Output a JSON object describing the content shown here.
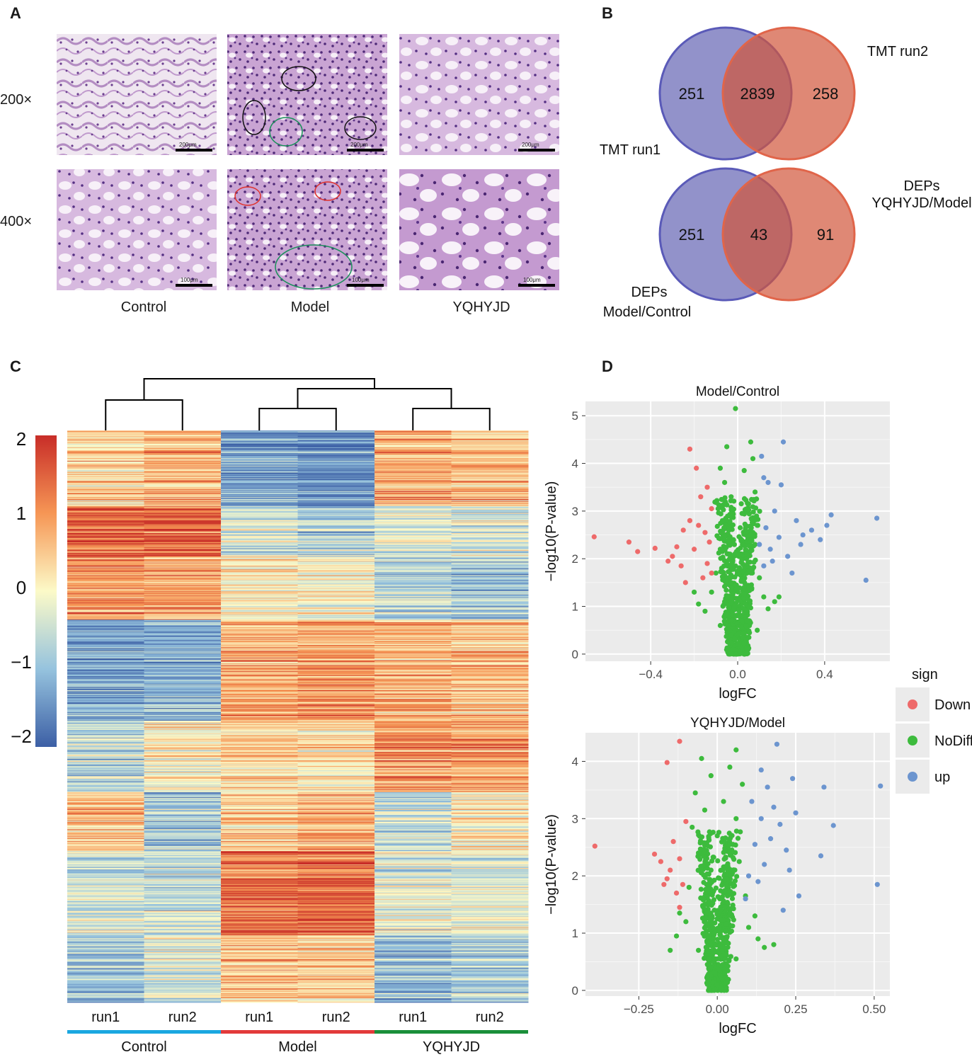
{
  "panels": {
    "A": "A",
    "B": "B",
    "C": "C",
    "D": "D"
  },
  "histology": {
    "row_labels": [
      "200×",
      "400×"
    ],
    "col_labels": [
      "Control",
      "Model",
      "YQHYJD"
    ],
    "scale_labels": [
      "200μm",
      "100μm"
    ]
  },
  "venn": [
    {
      "left_label": "TMT run1",
      "right_label": "TMT run2",
      "left_only": "251",
      "overlap": "2839",
      "right_only": "258"
    },
    {
      "left_label_1": "DEPs",
      "left_label_2": "Model/Control",
      "right_label_1": "DEPs",
      "right_label_2": "YQHYJD/Model",
      "left_only": "251",
      "overlap": "43",
      "right_only": "91"
    }
  ],
  "colors": {
    "venn_left": "#4a4aa6",
    "venn_right": "#d2553a",
    "down": "#ee6a6a",
    "nodiff": "#3dbb3d",
    "up": "#6c95cf",
    "control_bar": "#1aa7e0",
    "model_bar": "#e23a3a",
    "yqhyjd_bar": "#1a8f3a",
    "plot_bg": "#ebebeb"
  },
  "chart_data": [
    {
      "type": "heatmap",
      "title": "",
      "columns": [
        "run1",
        "run2",
        "run1",
        "run2",
        "run1",
        "run2"
      ],
      "groups": [
        "Control",
        "Model",
        "YQHYJD"
      ],
      "colorbar": {
        "ticks": [
          "2",
          "1",
          "0",
          "−1",
          "−2"
        ],
        "range": [
          -2,
          2
        ]
      },
      "block_means": [
        [
          0.5,
          0.8,
          -1.2,
          -1.4,
          0.9,
          0.7
        ],
        [
          1.4,
          1.5,
          -0.5,
          -0.7,
          -0.3,
          -0.4
        ],
        [
          1.0,
          0.9,
          0.2,
          0.0,
          -0.6,
          -0.8
        ],
        [
          -1.3,
          -1.2,
          0.8,
          0.9,
          0.7,
          0.6
        ],
        [
          -0.6,
          0.1,
          0.4,
          0.3,
          1.0,
          0.9
        ],
        [
          0.6,
          -0.8,
          0.5,
          0.8,
          -0.5,
          0.2
        ],
        [
          -0.4,
          -0.5,
          1.3,
          1.4,
          -0.3,
          -0.2
        ],
        [
          -0.9,
          -0.3,
          0.6,
          0.5,
          -1.0,
          -0.8
        ]
      ],
      "block_rows": [
        90,
        60,
        75,
        120,
        85,
        70,
        100,
        80
      ],
      "dendrogram": "((Control run1, Control run2), ((Model run1, Model run2), (YQHYJD run1, YQHYJD run2)))"
    },
    {
      "type": "scatter",
      "title": "Model/Control",
      "xlabel": "logFC",
      "ylabel": "−log10(P-value)",
      "xlim": [
        -0.7,
        0.7
      ],
      "ylim": [
        -0.15,
        5.3
      ],
      "xticks": [
        -0.4,
        0.0,
        0.4
      ],
      "xtick_labels": [
        "−0.4",
        "0.0",
        "0.4"
      ],
      "yticks": [
        0,
        1,
        2,
        3,
        4,
        5
      ],
      "down_points": [
        [
          -0.66,
          2.46
        ],
        [
          -0.5,
          2.35
        ],
        [
          -0.46,
          2.15
        ],
        [
          -0.38,
          2.22
        ],
        [
          -0.32,
          1.95
        ],
        [
          -0.3,
          2.05
        ],
        [
          -0.28,
          2.25
        ],
        [
          -0.26,
          1.85
        ],
        [
          -0.25,
          2.6
        ],
        [
          -0.24,
          1.5
        ],
        [
          -0.22,
          2.8
        ],
        [
          -0.22,
          4.3
        ],
        [
          -0.2,
          2.2
        ],
        [
          -0.19,
          3.9
        ],
        [
          -0.18,
          2.7
        ],
        [
          -0.17,
          3.3
        ],
        [
          -0.16,
          1.6
        ],
        [
          -0.15,
          2.55
        ],
        [
          -0.14,
          3.5
        ],
        [
          -0.14,
          1.9
        ],
        [
          -0.13,
          2.35
        ],
        [
          -0.12,
          3.05
        ],
        [
          -0.12,
          1.7
        ]
      ],
      "up_points": [
        [
          0.64,
          2.85
        ],
        [
          0.59,
          1.55
        ],
        [
          0.43,
          2.92
        ],
        [
          0.41,
          2.7
        ],
        [
          0.38,
          2.4
        ],
        [
          0.34,
          2.6
        ],
        [
          0.3,
          2.5
        ],
        [
          0.29,
          2.3
        ],
        [
          0.27,
          2.8
        ],
        [
          0.25,
          1.7
        ],
        [
          0.23,
          2.05
        ],
        [
          0.21,
          4.45
        ],
        [
          0.2,
          3.55
        ],
        [
          0.19,
          2.45
        ],
        [
          0.17,
          3.0
        ],
        [
          0.16,
          1.95
        ],
        [
          0.15,
          2.2
        ],
        [
          0.14,
          3.6
        ],
        [
          0.13,
          2.65
        ],
        [
          0.12,
          3.7
        ],
        [
          0.12,
          1.85
        ],
        [
          0.11,
          4.15
        ],
        [
          0.1,
          2.3
        ]
      ],
      "nodiff_points": [
        [
          -0.01,
          5.15
        ],
        [
          0.06,
          4.45
        ],
        [
          -0.05,
          4.35
        ],
        [
          0.07,
          4.1
        ],
        [
          -0.08,
          3.9
        ],
        [
          0.03,
          3.85
        ],
        [
          -0.06,
          3.6
        ],
        [
          0.08,
          3.4
        ],
        [
          -0.03,
          3.3
        ],
        [
          0.05,
          3.15
        ],
        [
          -0.09,
          3.05
        ],
        [
          0.02,
          2.95
        ],
        [
          -0.07,
          2.8
        ],
        [
          0.09,
          2.7
        ],
        [
          -0.04,
          2.6
        ],
        [
          0.06,
          2.5
        ],
        [
          -0.02,
          2.4
        ],
        [
          0.08,
          2.3
        ],
        [
          -0.08,
          2.2
        ],
        [
          0.01,
          2.1
        ],
        [
          0.04,
          2.0
        ],
        [
          -0.05,
          1.9
        ],
        [
          0.07,
          1.8
        ],
        [
          -0.1,
          1.7
        ],
        [
          0.1,
          1.6
        ],
        [
          -0.03,
          1.5
        ],
        [
          0.03,
          1.4
        ],
        [
          -0.12,
          1.3
        ],
        [
          0.12,
          1.2
        ],
        [
          -0.06,
          1.1
        ],
        [
          0.05,
          1.0
        ],
        [
          -0.15,
          0.9
        ],
        [
          0.14,
          0.95
        ],
        [
          -0.01,
          0.8
        ],
        [
          0.02,
          0.7
        ],
        [
          -0.08,
          0.6
        ],
        [
          0.09,
          0.5
        ],
        [
          -0.03,
          0.4
        ],
        [
          0.04,
          0.3
        ],
        [
          0.0,
          0.2
        ],
        [
          -0.02,
          0.1
        ],
        [
          0.01,
          0.05
        ],
        [
          -0.18,
          1.05
        ],
        [
          0.17,
          1.1
        ],
        [
          -0.2,
          1.3
        ],
        [
          0.19,
          1.2
        ]
      ]
    },
    {
      "type": "scatter",
      "title": "YQHYJD/Model",
      "xlabel": "logFC",
      "ylabel": "−log10(P-value)",
      "xlim": [
        -0.42,
        0.55
      ],
      "ylim": [
        -0.1,
        4.5
      ],
      "xticks": [
        -0.25,
        0.0,
        0.25,
        0.5
      ],
      "xtick_labels": [
        "−0.25",
        "0.00",
        "0.25",
        "0.50"
      ],
      "yticks": [
        0,
        1,
        2,
        3,
        4
      ],
      "down_points": [
        [
          -0.39,
          2.52
        ],
        [
          -0.2,
          2.38
        ],
        [
          -0.18,
          2.25
        ],
        [
          -0.17,
          1.85
        ],
        [
          -0.16,
          1.95
        ],
        [
          -0.15,
          2.1
        ],
        [
          -0.14,
          2.6
        ],
        [
          -0.13,
          1.7
        ],
        [
          -0.12,
          2.3
        ],
        [
          -0.12,
          1.45
        ],
        [
          -0.12,
          4.35
        ],
        [
          -0.16,
          3.98
        ],
        [
          -0.11,
          1.85
        ],
        [
          -0.1,
          2.95
        ]
      ],
      "up_points": [
        [
          0.52,
          3.57
        ],
        [
          0.51,
          1.85
        ],
        [
          0.37,
          2.88
        ],
        [
          0.34,
          3.55
        ],
        [
          0.33,
          2.35
        ],
        [
          0.26,
          1.65
        ],
        [
          0.25,
          3.1
        ],
        [
          0.24,
          3.7
        ],
        [
          0.23,
          2.1
        ],
        [
          0.22,
          2.45
        ],
        [
          0.21,
          1.4
        ],
        [
          0.2,
          2.9
        ],
        [
          0.19,
          4.3
        ],
        [
          0.18,
          3.2
        ],
        [
          0.17,
          2.65
        ],
        [
          0.16,
          3.55
        ],
        [
          0.15,
          2.2
        ],
        [
          0.14,
          3.0
        ],
        [
          0.13,
          1.9
        ],
        [
          0.12,
          2.55
        ],
        [
          0.11,
          3.3
        ],
        [
          0.1,
          2.0
        ],
        [
          0.09,
          1.6
        ],
        [
          0.14,
          3.85
        ]
      ],
      "nodiff_points": [
        [
          0.06,
          4.2
        ],
        [
          -0.05,
          4.05
        ],
        [
          0.04,
          3.9
        ],
        [
          -0.02,
          3.75
        ],
        [
          0.08,
          3.6
        ],
        [
          -0.07,
          3.45
        ],
        [
          0.02,
          3.3
        ],
        [
          -0.04,
          3.15
        ],
        [
          0.06,
          3.0
        ],
        [
          -0.08,
          2.85
        ],
        [
          0.0,
          2.7
        ],
        [
          0.05,
          2.55
        ],
        [
          -0.06,
          2.4
        ],
        [
          0.07,
          2.25
        ],
        [
          -0.02,
          2.1
        ],
        [
          0.03,
          1.95
        ],
        [
          -0.09,
          1.8
        ],
        [
          0.09,
          1.65
        ],
        [
          -0.04,
          1.5
        ],
        [
          0.04,
          1.35
        ],
        [
          -0.1,
          1.2
        ],
        [
          0.1,
          1.1
        ],
        [
          -0.01,
          1.0
        ],
        [
          0.02,
          0.85
        ],
        [
          -0.06,
          0.7
        ],
        [
          0.06,
          0.55
        ],
        [
          -0.02,
          0.4
        ],
        [
          0.01,
          0.25
        ],
        [
          0.0,
          0.1
        ],
        [
          -0.13,
          0.95
        ],
        [
          0.13,
          0.9
        ],
        [
          -0.15,
          0.7
        ],
        [
          0.15,
          0.75
        ],
        [
          -0.12,
          1.35
        ],
        [
          0.12,
          1.3
        ],
        [
          0.18,
          0.8
        ]
      ]
    }
  ],
  "legend": {
    "title": "sign",
    "items": [
      "Down",
      "NoDiff",
      "up"
    ]
  }
}
